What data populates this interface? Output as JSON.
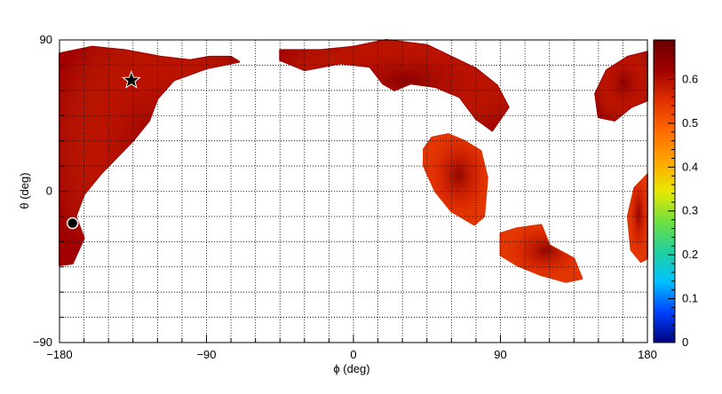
{
  "chart_data": {
    "type": "heatmap",
    "title": "",
    "xlabel": "ϕ (deg)",
    "ylabel": "θ (deg)",
    "xlim": [
      -180,
      180
    ],
    "ylim": [
      -90,
      90
    ],
    "x_ticks": [
      -180,
      -90,
      0,
      90,
      180
    ],
    "x_tick_labels": [
      "−180",
      "−90",
      "0",
      "90",
      "180"
    ],
    "y_ticks": [
      -90,
      0,
      90
    ],
    "y_tick_labels": [
      "−90",
      "0",
      "90"
    ],
    "grid": true,
    "grid_spacing_x_deg": 15,
    "grid_spacing_y_deg": 15,
    "colorbar": {
      "min": 0,
      "max": 0.69,
      "ticks": [
        0,
        0.1,
        0.2,
        0.3,
        0.4,
        0.5,
        0.6
      ],
      "tick_labels": [
        "0",
        "0.1",
        "0.2",
        "0.3",
        "0.4",
        "0.5",
        "0.6"
      ],
      "palette": [
        "#00007f",
        "#0040ff",
        "#00c0ff",
        "#20d0a0",
        "#70e040",
        "#e8e800",
        "#ffa500",
        "#ff6a00",
        "#e03000",
        "#a00000",
        "#6a0000"
      ]
    },
    "regions": [
      {
        "name": "upper-left-band",
        "value": 0.6,
        "outline": [
          [
            -180,
            82
          ],
          [
            -160,
            86
          ],
          [
            -140,
            84
          ],
          [
            -118,
            80
          ],
          [
            -100,
            78
          ],
          [
            -88,
            80
          ],
          [
            -75,
            80
          ],
          [
            -70,
            77
          ],
          [
            -90,
            73
          ],
          [
            -110,
            66
          ],
          [
            -120,
            55
          ],
          [
            -125,
            42
          ],
          [
            -135,
            30
          ],
          [
            -145,
            20
          ],
          [
            -155,
            10
          ],
          [
            -165,
            -2
          ],
          [
            -170,
            -15
          ],
          [
            -165,
            -28
          ],
          [
            -172,
            -43
          ],
          [
            -180,
            -44
          ]
        ]
      },
      {
        "name": "top-center-band",
        "value": 0.62,
        "outline": [
          [
            -45,
            84
          ],
          [
            -20,
            84
          ],
          [
            0,
            86
          ],
          [
            20,
            90
          ],
          [
            45,
            87
          ],
          [
            60,
            80
          ],
          [
            75,
            73
          ],
          [
            88,
            63
          ],
          [
            95,
            50
          ],
          [
            85,
            36
          ],
          [
            75,
            43
          ],
          [
            65,
            56
          ],
          [
            50,
            62
          ],
          [
            35,
            64
          ],
          [
            25,
            60
          ],
          [
            18,
            64
          ],
          [
            10,
            74
          ],
          [
            -8,
            76
          ],
          [
            -30,
            72
          ],
          [
            -45,
            78
          ]
        ]
      },
      {
        "name": "right-edge-upper",
        "value": 0.6,
        "outline": [
          [
            180,
            83
          ],
          [
            168,
            80
          ],
          [
            155,
            72
          ],
          [
            148,
            58
          ],
          [
            150,
            44
          ],
          [
            160,
            42
          ],
          [
            170,
            50
          ],
          [
            180,
            54
          ]
        ]
      },
      {
        "name": "right-edge-lower",
        "value": 0.55,
        "outline": [
          [
            180,
            10
          ],
          [
            172,
            2
          ],
          [
            168,
            -15
          ],
          [
            170,
            -35
          ],
          [
            176,
            -42
          ],
          [
            180,
            -40
          ]
        ]
      },
      {
        "name": "center-right-blob",
        "value": 0.58,
        "outline": [
          [
            43,
            25
          ],
          [
            48,
            32
          ],
          [
            58,
            34
          ],
          [
            68,
            30
          ],
          [
            78,
            24
          ],
          [
            82,
            8
          ],
          [
            80,
            -15
          ],
          [
            74,
            -20
          ],
          [
            60,
            -12
          ],
          [
            50,
            0
          ],
          [
            43,
            15
          ]
        ]
      },
      {
        "name": "lower-right-blob",
        "value": 0.52,
        "outline": [
          [
            90,
            -25
          ],
          [
            100,
            -22
          ],
          [
            115,
            -20
          ],
          [
            120,
            -32
          ],
          [
            135,
            -40
          ],
          [
            140,
            -52
          ],
          [
            130,
            -54
          ],
          [
            115,
            -50
          ],
          [
            100,
            -44
          ],
          [
            90,
            -38
          ]
        ]
      }
    ],
    "markers": [
      {
        "name": "star",
        "phi": -136,
        "theta": 66
      },
      {
        "name": "circle",
        "phi": -172,
        "theta": -19
      }
    ]
  }
}
